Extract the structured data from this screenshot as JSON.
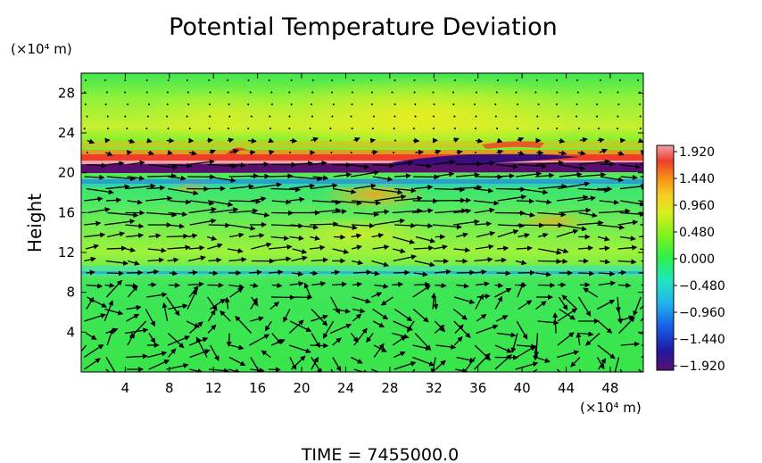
{
  "chart_data": {
    "type": "heatmap",
    "title": "Potential Temperature Deviation",
    "ylabel": "Height",
    "y_unit": "(×10⁴ m)",
    "x_unit": "(×10⁴ m)",
    "footer": "TIME  =  7455000.0",
    "xlim": [
      0,
      51
    ],
    "ylim": [
      0,
      30
    ],
    "x_ticks": [
      "4",
      "8",
      "12",
      "16",
      "20",
      "24",
      "28",
      "32",
      "36",
      "40",
      "44",
      "48"
    ],
    "x_tick_values": [
      4,
      8,
      12,
      16,
      20,
      24,
      28,
      32,
      36,
      40,
      44,
      48
    ],
    "y_ticks": [
      "4",
      "8",
      "12",
      "16",
      "20",
      "24",
      "28"
    ],
    "y_tick_values": [
      4,
      8,
      12,
      16,
      20,
      24,
      28
    ],
    "colorbar": {
      "min": -1.92,
      "max": 1.92,
      "labels": [
        "1.920",
        "1.440",
        "0.960",
        "0.480",
        "0.000",
        "−0.480",
        "−0.960",
        "−1.440",
        "−1.920"
      ],
      "label_values": [
        1.92,
        1.44,
        0.96,
        0.48,
        0.0,
        -0.48,
        -0.96,
        -1.44,
        -1.92
      ],
      "colors": [
        "#5a0f6e",
        "#1f1aa6",
        "#1763ea",
        "#22b5ea",
        "#20e6c2",
        "#2ef04a",
        "#7ef21c",
        "#d7ef1e",
        "#f8cd20",
        "#f68a18",
        "#ee3d2a",
        "#f0a0a8"
      ]
    },
    "vector_field": "wind vectors (arrows) overlaid on field",
    "grid": false
  }
}
